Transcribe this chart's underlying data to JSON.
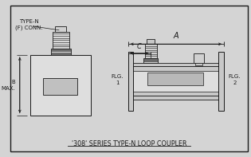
{
  "bg_color": "#d4d4d4",
  "inner_bg": "#e8e8e8",
  "line_color": "#1a1a1a",
  "title": "'308' SERIES TYPE-N LOOP COUPLER",
  "label_type_n": "TYPE-N\n(F) CONN.",
  "label_b": "B\nMAX.",
  "label_flg1": "FLG.\n1",
  "label_flg2": "FLG.\n2",
  "label_A": "A",
  "label_C": "C",
  "font_size_small": 5.0,
  "font_size_title": 5.8
}
